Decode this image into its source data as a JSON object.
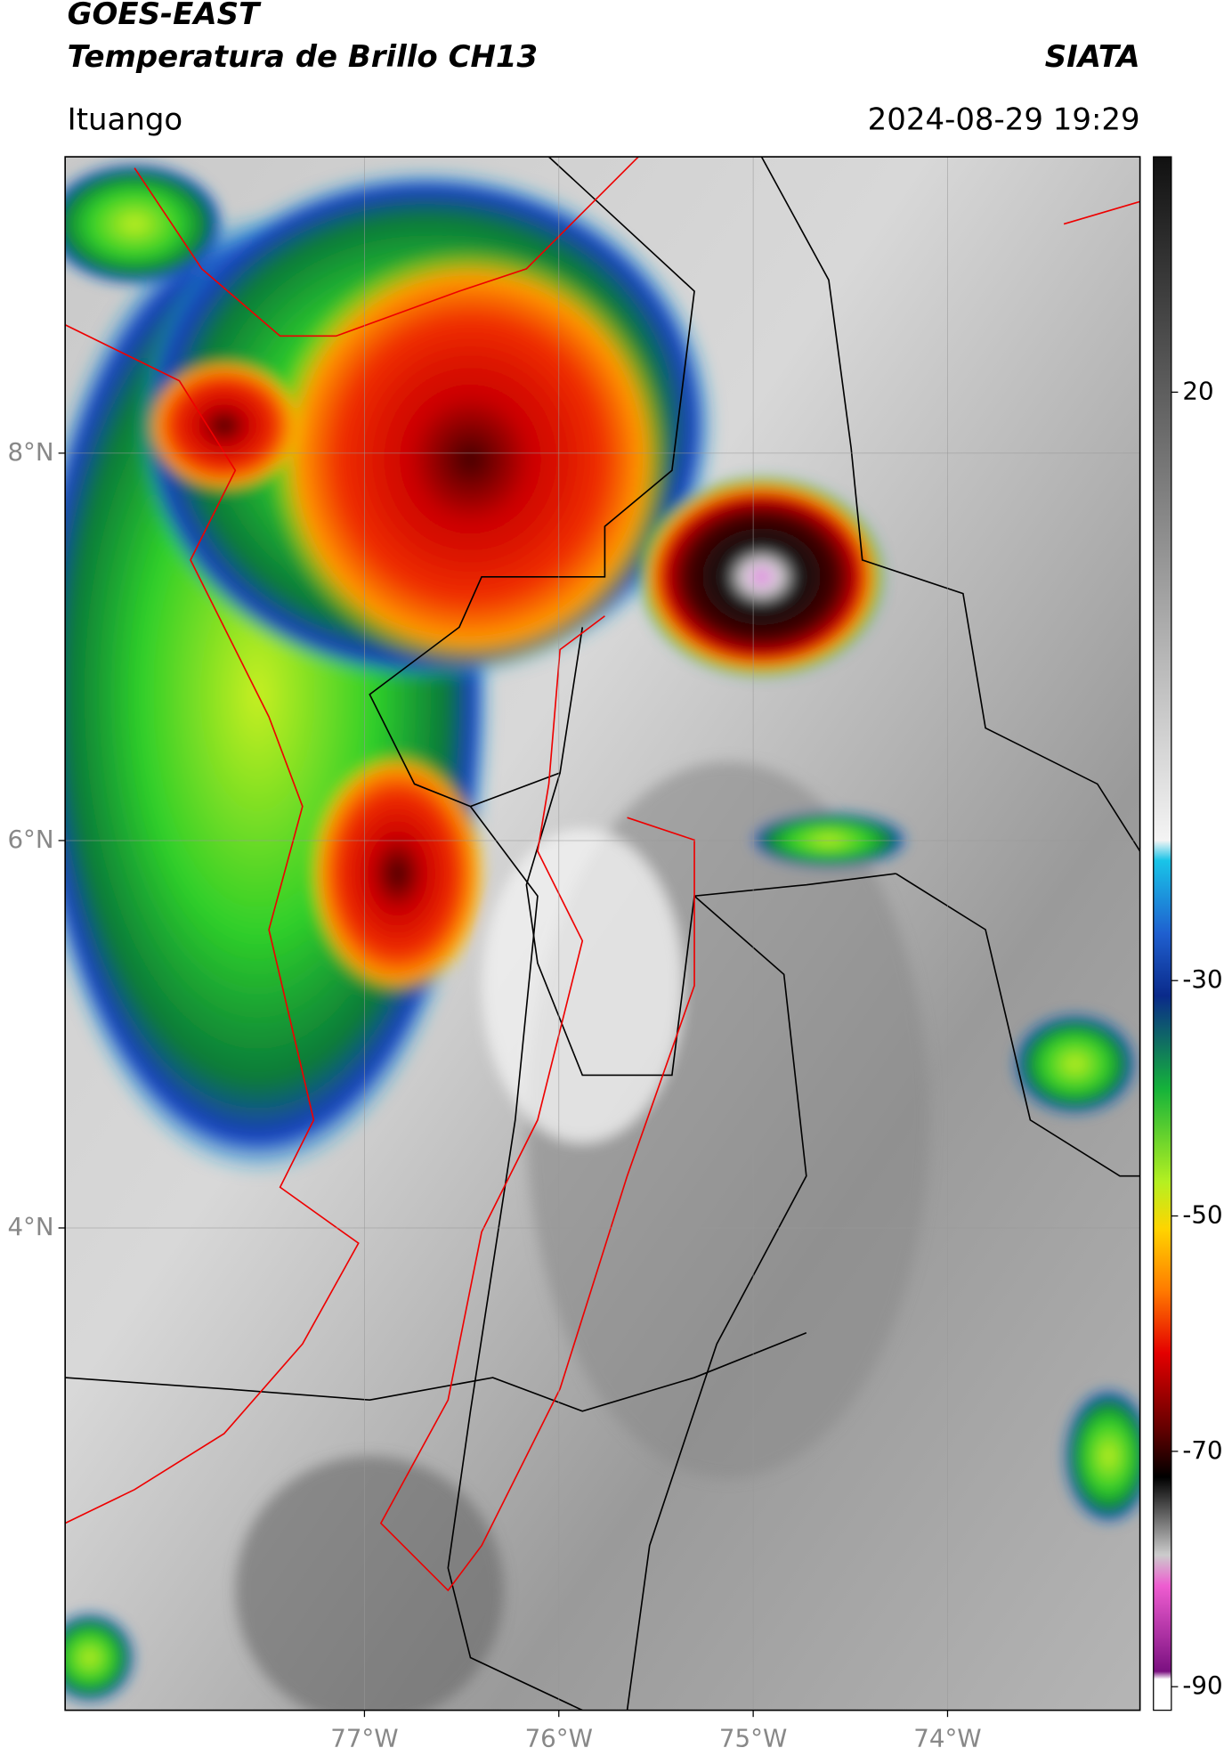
{
  "header": {
    "satellite": "GOES-EAST",
    "product": "Temperatura de Brillo CH13",
    "agency": "SIATA",
    "region": "Ituango",
    "timestamp": "2024-08-29 19:29"
  },
  "map": {
    "xlim": [
      -78.54,
      -73.01
    ],
    "ylim": [
      1.51,
      9.53
    ],
    "xticks": [
      {
        "value": -77,
        "label": "77°W"
      },
      {
        "value": -76,
        "label": "76°W"
      },
      {
        "value": -75,
        "label": "75°W"
      },
      {
        "value": -74,
        "label": "74°W"
      }
    ],
    "yticks": [
      {
        "value": 8,
        "label": "8°N"
      },
      {
        "value": 6,
        "label": "6°N"
      },
      {
        "value": 4,
        "label": "4°N"
      }
    ],
    "grid": true
  },
  "colorbar": {
    "lim": [
      -92,
      40
    ],
    "ticks": [
      20,
      -30,
      -50,
      -70,
      -90
    ]
  }
}
